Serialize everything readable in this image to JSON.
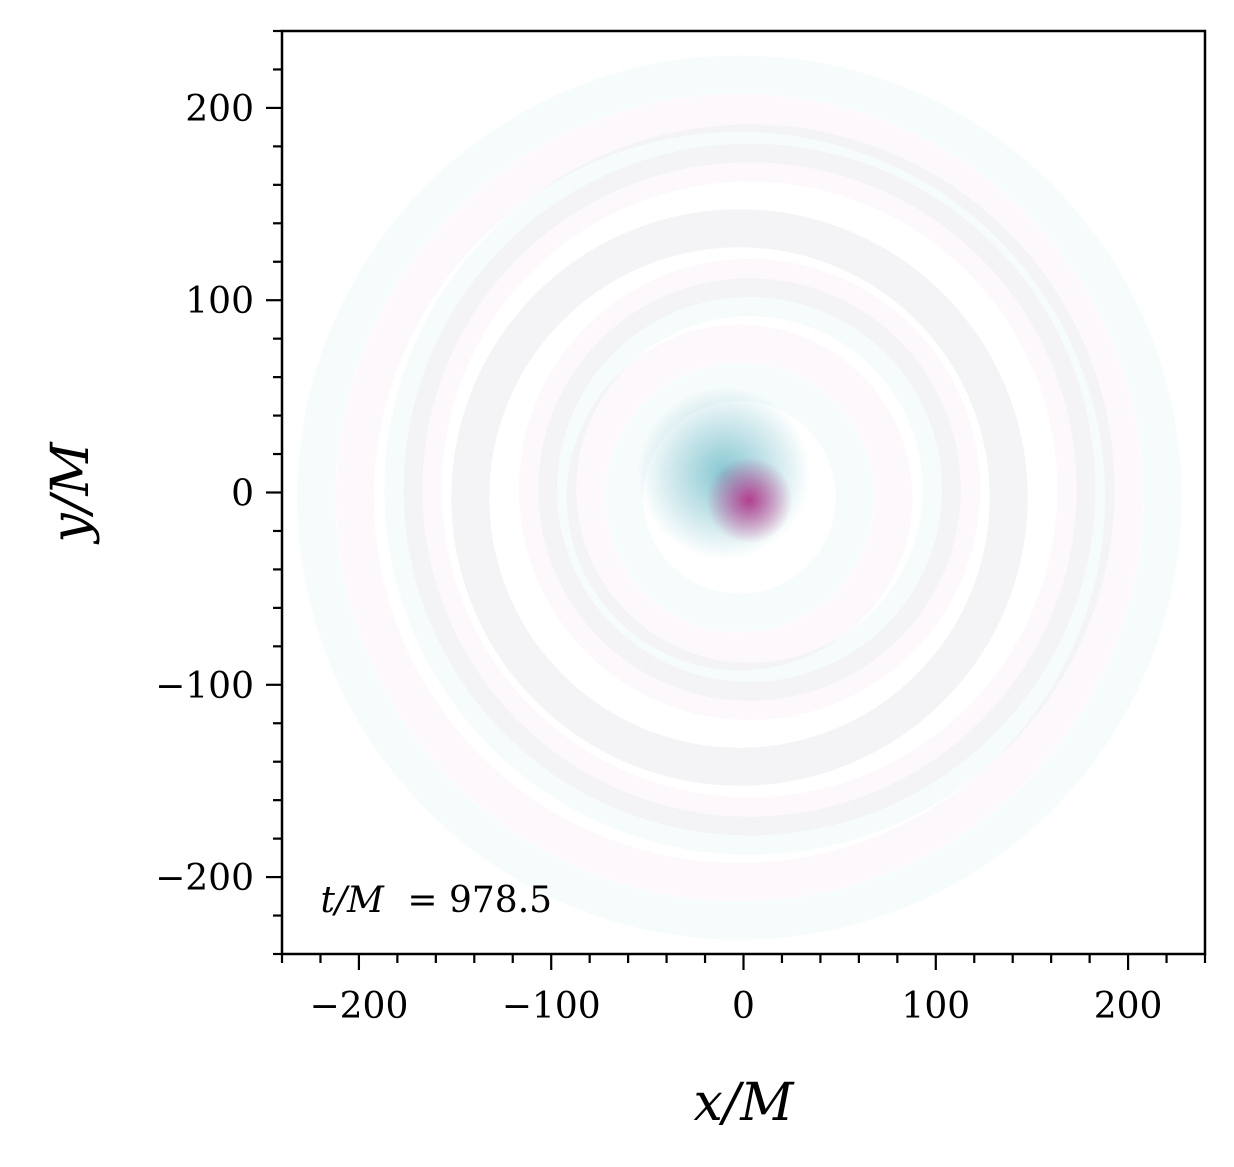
{
  "chart_data": {
    "type": "heatmap",
    "title": "",
    "xlabel": "x/M",
    "ylabel": "y/M",
    "xlim": [
      -240,
      240
    ],
    "ylim": [
      -240,
      240
    ],
    "x_ticks": [
      -200,
      -100,
      0,
      100,
      200
    ],
    "y_ticks": [
      -200,
      -100,
      0,
      100,
      200
    ],
    "x_tick_labels": [
      "−200",
      "−100",
      "0",
      "100",
      "200"
    ],
    "y_tick_labels": [
      "−200",
      "−100",
      "0",
      "100",
      "200"
    ],
    "minor_tick_step": 20,
    "grid": false,
    "annotation": {
      "var": "t/M",
      "eq": "= ",
      "value": "978.5",
      "x": -220,
      "y": -212
    },
    "colormap": {
      "positive_color": "#5fb4c2",
      "negative_color": "#b0237f",
      "zero_color": "#ffffff"
    },
    "features": [
      {
        "kind": "blob",
        "sign": "positive",
        "x": -10,
        "y": 10,
        "radius": 28,
        "intensity": 0.75
      },
      {
        "kind": "blob",
        "sign": "negative",
        "x": 3,
        "y": -4,
        "radius": 14,
        "intensity": 0.85
      },
      {
        "kind": "spiral-ring",
        "sign": "positive",
        "radius_range": [
          60,
          220
        ],
        "intensity": 0.06
      },
      {
        "kind": "spiral-ring",
        "sign": "negative",
        "radius_range": [
          80,
          200
        ],
        "intensity": 0.03
      }
    ]
  }
}
